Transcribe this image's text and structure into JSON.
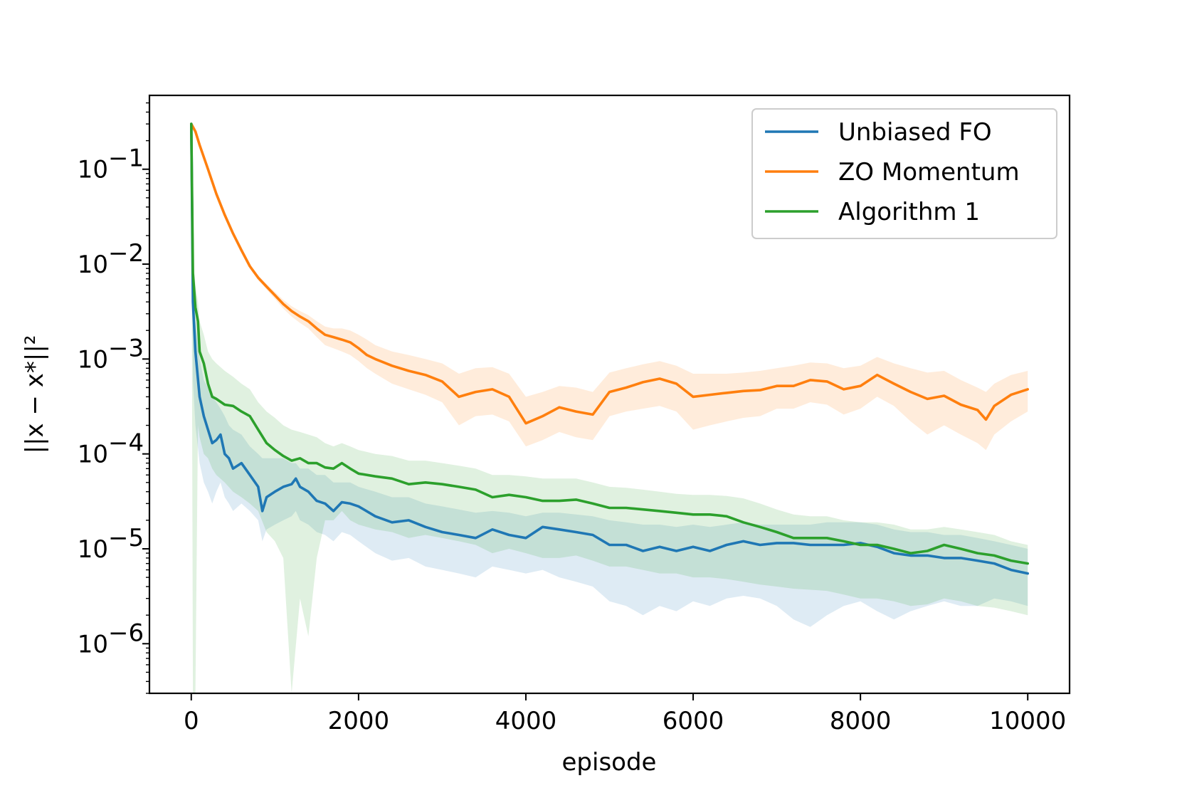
{
  "chart_data": {
    "type": "line",
    "xlabel": "episode",
    "ylabel": "||x − x*||²",
    "yscale": "log",
    "xlim": [
      -500,
      10500
    ],
    "ylim": [
      3e-07,
      0.6
    ],
    "xticks": [
      {
        "value": 0,
        "label": "0"
      },
      {
        "value": 2000,
        "label": "2000"
      },
      {
        "value": 4000,
        "label": "4000"
      },
      {
        "value": 6000,
        "label": "6000"
      },
      {
        "value": 8000,
        "label": "8000"
      },
      {
        "value": 10000,
        "label": "10000"
      }
    ],
    "yticks": [
      {
        "exp": -1,
        "label": "10",
        "sup": "−1"
      },
      {
        "exp": -2,
        "label": "10",
        "sup": "−2"
      },
      {
        "exp": -3,
        "label": "10",
        "sup": "−3"
      },
      {
        "exp": -4,
        "label": "10",
        "sup": "−4"
      },
      {
        "exp": -5,
        "label": "10",
        "sup": "−5"
      },
      {
        "exp": -6,
        "label": "10",
        "sup": "−6"
      }
    ],
    "grid": false,
    "legend_position": "top-right",
    "series": [
      {
        "name": "Unbiased FO",
        "color": "#1f77b4",
        "x": [
          0,
          20,
          50,
          100,
          150,
          200,
          250,
          300,
          350,
          400,
          450,
          500,
          600,
          700,
          800,
          850,
          900,
          1000,
          1100,
          1200,
          1250,
          1300,
          1400,
          1500,
          1600,
          1700,
          1800,
          1900,
          2000,
          2200,
          2400,
          2600,
          2800,
          3000,
          3200,
          3400,
          3600,
          3800,
          4000,
          4200,
          4400,
          4600,
          4800,
          5000,
          5200,
          5400,
          5600,
          5800,
          6000,
          6200,
          6400,
          6600,
          6800,
          7000,
          7200,
          7400,
          7600,
          7800,
          8000,
          8200,
          8400,
          8600,
          8800,
          9000,
          9200,
          9400,
          9600,
          9800,
          10000
        ],
        "y": [
          0.3,
          0.004,
          0.0012,
          0.0004,
          0.00025,
          0.00018,
          0.00013,
          0.00014,
          0.00016,
          0.0001,
          9e-05,
          7e-05,
          8e-05,
          6e-05,
          4.5e-05,
          2.5e-05,
          3.5e-05,
          4e-05,
          4.5e-05,
          4.8e-05,
          5.5e-05,
          4.5e-05,
          4e-05,
          3.2e-05,
          3e-05,
          2.5e-05,
          3.1e-05,
          3e-05,
          2.8e-05,
          2.2e-05,
          1.9e-05,
          2e-05,
          1.7e-05,
          1.5e-05,
          1.4e-05,
          1.3e-05,
          1.6e-05,
          1.4e-05,
          1.3e-05,
          1.7e-05,
          1.6e-05,
          1.5e-05,
          1.4e-05,
          1.1e-05,
          1.1e-05,
          9.5e-06,
          1.05e-05,
          9.5e-06,
          1.05e-05,
          9.5e-06,
          1.1e-05,
          1.2e-05,
          1.1e-05,
          1.15e-05,
          1.15e-05,
          1.1e-05,
          1.1e-05,
          1.1e-05,
          1.15e-05,
          1.05e-05,
          9e-06,
          8.5e-06,
          8.5e-06,
          8e-06,
          8e-06,
          7.5e-06,
          7e-06,
          6e-06,
          5.5e-06
        ],
        "band_upper": [
          0.3,
          0.006,
          0.0025,
          0.001,
          0.0006,
          0.0005,
          0.0004,
          0.00035,
          0.0003,
          0.00025,
          0.0002,
          0.00018,
          0.00016,
          0.00012,
          0.0001,
          9e-05,
          9e-05,
          9e-05,
          9e-05,
          8e-05,
          8e-05,
          7e-05,
          7e-05,
          6e-05,
          6e-05,
          5e-05,
          5e-05,
          5e-05,
          4.5e-05,
          4e-05,
          3.5e-05,
          3.5e-05,
          3e-05,
          2.8e-05,
          2.6e-05,
          2.4e-05,
          2.5e-05,
          2.4e-05,
          2.2e-05,
          2.4e-05,
          2.4e-05,
          2.3e-05,
          2.2e-05,
          2e-05,
          1.9e-05,
          1.8e-05,
          1.8e-05,
          1.7e-05,
          1.8e-05,
          1.7e-05,
          1.8e-05,
          1.9e-05,
          1.8e-05,
          1.8e-05,
          1.8e-05,
          1.8e-05,
          1.9e-05,
          1.9e-05,
          1.9e-05,
          1.8e-05,
          1.6e-05,
          1.5e-05,
          1.5e-05,
          1.4e-05,
          1.4e-05,
          1.3e-05,
          1.2e-05,
          1.1e-05,
          1e-05
        ],
        "band_lower": [
          0.3,
          0.0006,
          0.0002,
          8e-05,
          5e-05,
          4e-05,
          3e-05,
          4e-05,
          5e-05,
          3.5e-05,
          3e-05,
          2.5e-05,
          3e-05,
          2.5e-05,
          2e-05,
          1.2e-05,
          1.6e-05,
          1.8e-05,
          2e-05,
          2.2e-05,
          2.5e-05,
          2e-05,
          1.8e-05,
          1.5e-05,
          1.4e-05,
          1.2e-05,
          1.5e-05,
          1.4e-05,
          1.2e-05,
          9e-06,
          7.5e-06,
          8e-06,
          6.5e-06,
          6e-06,
          5.5e-06,
          5e-06,
          6.5e-06,
          6e-06,
          5.5e-06,
          6e-06,
          5e-06,
          4.5e-06,
          4e-06,
          2.8e-06,
          2.5e-06,
          2e-06,
          2.5e-06,
          2.2e-06,
          2.8e-06,
          2.5e-06,
          3e-06,
          3.2e-06,
          3e-06,
          2.5e-06,
          1.8e-06,
          1.5e-06,
          2e-06,
          2.5e-06,
          2.8e-06,
          2.2e-06,
          1.8e-06,
          2.2e-06,
          2.5e-06,
          2.8e-06,
          2.5e-06,
          2.5e-06,
          3e-06,
          2.8e-06,
          2.5e-06
        ]
      },
      {
        "name": "ZO Momentum",
        "color": "#ff7f0e",
        "x": [
          0,
          50,
          100,
          200,
          300,
          400,
          500,
          600,
          700,
          800,
          900,
          1000,
          1100,
          1200,
          1300,
          1400,
          1500,
          1600,
          1700,
          1800,
          1900,
          2000,
          2100,
          2200,
          2400,
          2600,
          2800,
          3000,
          3200,
          3400,
          3600,
          3800,
          4000,
          4200,
          4400,
          4600,
          4800,
          5000,
          5200,
          5400,
          5600,
          5800,
          6000,
          6200,
          6400,
          6600,
          6800,
          7000,
          7200,
          7400,
          7600,
          7800,
          8000,
          8200,
          8400,
          8600,
          8800,
          9000,
          9200,
          9400,
          9500,
          9600,
          9800,
          10000
        ],
        "y": [
          0.3,
          0.25,
          0.18,
          0.1,
          0.055,
          0.033,
          0.021,
          0.014,
          0.0095,
          0.0072,
          0.0058,
          0.0047,
          0.0038,
          0.0032,
          0.0028,
          0.0025,
          0.0021,
          0.0018,
          0.0017,
          0.0016,
          0.0015,
          0.0013,
          0.0011,
          0.001,
          0.00085,
          0.00075,
          0.00068,
          0.00058,
          0.0004,
          0.00045,
          0.00048,
          0.0004,
          0.00021,
          0.00025,
          0.00031,
          0.00028,
          0.00026,
          0.00045,
          0.0005,
          0.00057,
          0.00062,
          0.00055,
          0.0004,
          0.00042,
          0.00044,
          0.00046,
          0.00047,
          0.00052,
          0.00052,
          0.0006,
          0.00058,
          0.00048,
          0.00052,
          0.00068,
          0.00055,
          0.00045,
          0.00038,
          0.00041,
          0.00033,
          0.00029,
          0.00023,
          0.00032,
          0.00042,
          0.00048
        ],
        "band_upper": [
          0.3,
          0.26,
          0.19,
          0.105,
          0.058,
          0.035,
          0.022,
          0.015,
          0.01,
          0.0076,
          0.0062,
          0.0051,
          0.0042,
          0.0036,
          0.0032,
          0.0029,
          0.0025,
          0.0022,
          0.0021,
          0.0021,
          0.002,
          0.0018,
          0.0016,
          0.0014,
          0.0012,
          0.0011,
          0.001,
          0.0009,
          0.0007,
          0.0008,
          0.00082,
          0.0007,
          0.0004,
          0.00045,
          0.00052,
          0.0005,
          0.00045,
          0.00072,
          0.0008,
          0.00088,
          0.00095,
          0.00085,
          0.0007,
          0.0007,
          0.0007,
          0.00072,
          0.00075,
          0.0008,
          0.00085,
          0.00092,
          0.0009,
          0.0008,
          0.00085,
          0.00105,
          0.0009,
          0.0008,
          0.00072,
          0.00075,
          0.0006,
          0.0005,
          0.00045,
          0.00055,
          0.00068,
          0.00075
        ],
        "band_lower": [
          0.3,
          0.24,
          0.17,
          0.095,
          0.052,
          0.031,
          0.02,
          0.013,
          0.009,
          0.0068,
          0.0054,
          0.0043,
          0.0034,
          0.0028,
          0.0024,
          0.0021,
          0.0017,
          0.0014,
          0.0013,
          0.0012,
          0.0011,
          0.00095,
          0.0008,
          0.0007,
          0.00055,
          0.00048,
          0.00042,
          0.00035,
          0.0002,
          0.00025,
          0.00026,
          0.00022,
          0.00012,
          0.00014,
          0.00017,
          0.00015,
          0.00014,
          0.00025,
          0.00028,
          0.0003,
          0.00032,
          0.00028,
          0.00018,
          0.0002,
          0.00022,
          0.00024,
          0.00025,
          0.0003,
          0.0003,
          0.00035,
          0.00033,
          0.00026,
          0.0003,
          0.0004,
          0.00032,
          0.00022,
          0.00016,
          0.0002,
          0.00016,
          0.00013,
          0.00011,
          0.00016,
          0.00022,
          0.00028
        ]
      },
      {
        "name": "Algorithm 1",
        "color": "#2ca02c",
        "x": [
          0,
          20,
          50,
          80,
          100,
          150,
          200,
          250,
          300,
          400,
          500,
          600,
          700,
          800,
          900,
          1000,
          1100,
          1200,
          1300,
          1400,
          1500,
          1600,
          1700,
          1800,
          1900,
          2000,
          2200,
          2400,
          2600,
          2800,
          3000,
          3200,
          3400,
          3600,
          3800,
          4000,
          4200,
          4400,
          4600,
          4800,
          5000,
          5200,
          5400,
          5600,
          5800,
          6000,
          6200,
          6400,
          6600,
          6800,
          7000,
          7200,
          7400,
          7600,
          7800,
          8000,
          8200,
          8400,
          8600,
          8800,
          9000,
          9200,
          9400,
          9600,
          9800,
          10000
        ],
        "y": [
          0.3,
          0.008,
          0.0035,
          0.0025,
          0.0012,
          0.0009,
          0.00055,
          0.0004,
          0.00038,
          0.00033,
          0.00032,
          0.00028,
          0.00025,
          0.00018,
          0.00013,
          0.00011,
          9.5e-05,
          8.5e-05,
          9e-05,
          8e-05,
          8e-05,
          7.2e-05,
          7e-05,
          8e-05,
          7e-05,
          6.2e-05,
          5.8e-05,
          5.5e-05,
          4.8e-05,
          5e-05,
          4.8e-05,
          4.5e-05,
          4.2e-05,
          3.5e-05,
          3.7e-05,
          3.5e-05,
          3.2e-05,
          3.2e-05,
          3.3e-05,
          3e-05,
          2.7e-05,
          2.7e-05,
          2.6e-05,
          2.5e-05,
          2.4e-05,
          2.3e-05,
          2.3e-05,
          2.2e-05,
          1.9e-05,
          1.7e-05,
          1.5e-05,
          1.3e-05,
          1.3e-05,
          1.3e-05,
          1.2e-05,
          1.1e-05,
          1.1e-05,
          1e-05,
          9e-06,
          9.5e-06,
          1.1e-05,
          1e-05,
          9e-06,
          8.5e-06,
          7.5e-06,
          7e-06
        ],
        "band_upper": [
          0.3,
          0.012,
          0.006,
          0.004,
          0.0025,
          0.0018,
          0.0012,
          0.001,
          0.0009,
          0.00075,
          0.00065,
          0.00055,
          0.00048,
          0.00035,
          0.00028,
          0.00024,
          0.0002,
          0.00018,
          0.00017,
          0.00016,
          0.00015,
          0.00013,
          0.00012,
          0.00013,
          0.00012,
          0.00011,
          0.0001,
          9.5e-05,
          8.5e-05,
          8.5e-05,
          8e-05,
          7.5e-05,
          7e-05,
          6e-05,
          6e-05,
          5.8e-05,
          5.5e-05,
          5.5e-05,
          5.5e-05,
          5e-05,
          4.5e-05,
          4.4e-05,
          4.2e-05,
          4e-05,
          3.8e-05,
          3.7e-05,
          3.7e-05,
          3.6e-05,
          3.4e-05,
          3e-05,
          2.6e-05,
          2.3e-05,
          2.2e-05,
          2.2e-05,
          2e-05,
          1.9e-05,
          1.9e-05,
          1.8e-05,
          1.6e-05,
          1.6e-05,
          1.7e-05,
          1.6e-05,
          1.5e-05,
          1.4e-05,
          1.2e-05,
          1.1e-05
        ],
        "band_lower": [
          0.3,
          3e-07,
          3e-07,
          0.0002,
          0.00015,
          0.0001,
          9e-05,
          7e-05,
          6e-05,
          5e-05,
          4e-05,
          3.5e-05,
          3e-05,
          2.5e-05,
          1.5e-05,
          1.2e-05,
          8e-06,
          3e-07,
          3e-06,
          1.2e-06,
          8e-06,
          2e-05,
          2e-05,
          2.5e-05,
          2e-05,
          1.8e-05,
          1.6e-05,
          1.5e-05,
          1.3e-05,
          1.4e-05,
          1.3e-05,
          1.2e-05,
          1.1e-05,
          9e-06,
          1e-05,
          9e-06,
          8e-06,
          8e-06,
          8.5e-06,
          7.5e-06,
          6.5e-06,
          6.5e-06,
          6e-06,
          5.5e-06,
          5.5e-06,
          5e-06,
          5e-06,
          4.8e-06,
          4.5e-06,
          4.2e-06,
          4e-06,
          3.8e-06,
          3.7e-06,
          3.6e-06,
          3.3e-06,
          3e-06,
          3e-06,
          2.8e-06,
          2.5e-06,
          2.6e-06,
          3e-06,
          2.8e-06,
          2.5e-06,
          2.4e-06,
          2.2e-06,
          2e-06
        ]
      }
    ]
  }
}
